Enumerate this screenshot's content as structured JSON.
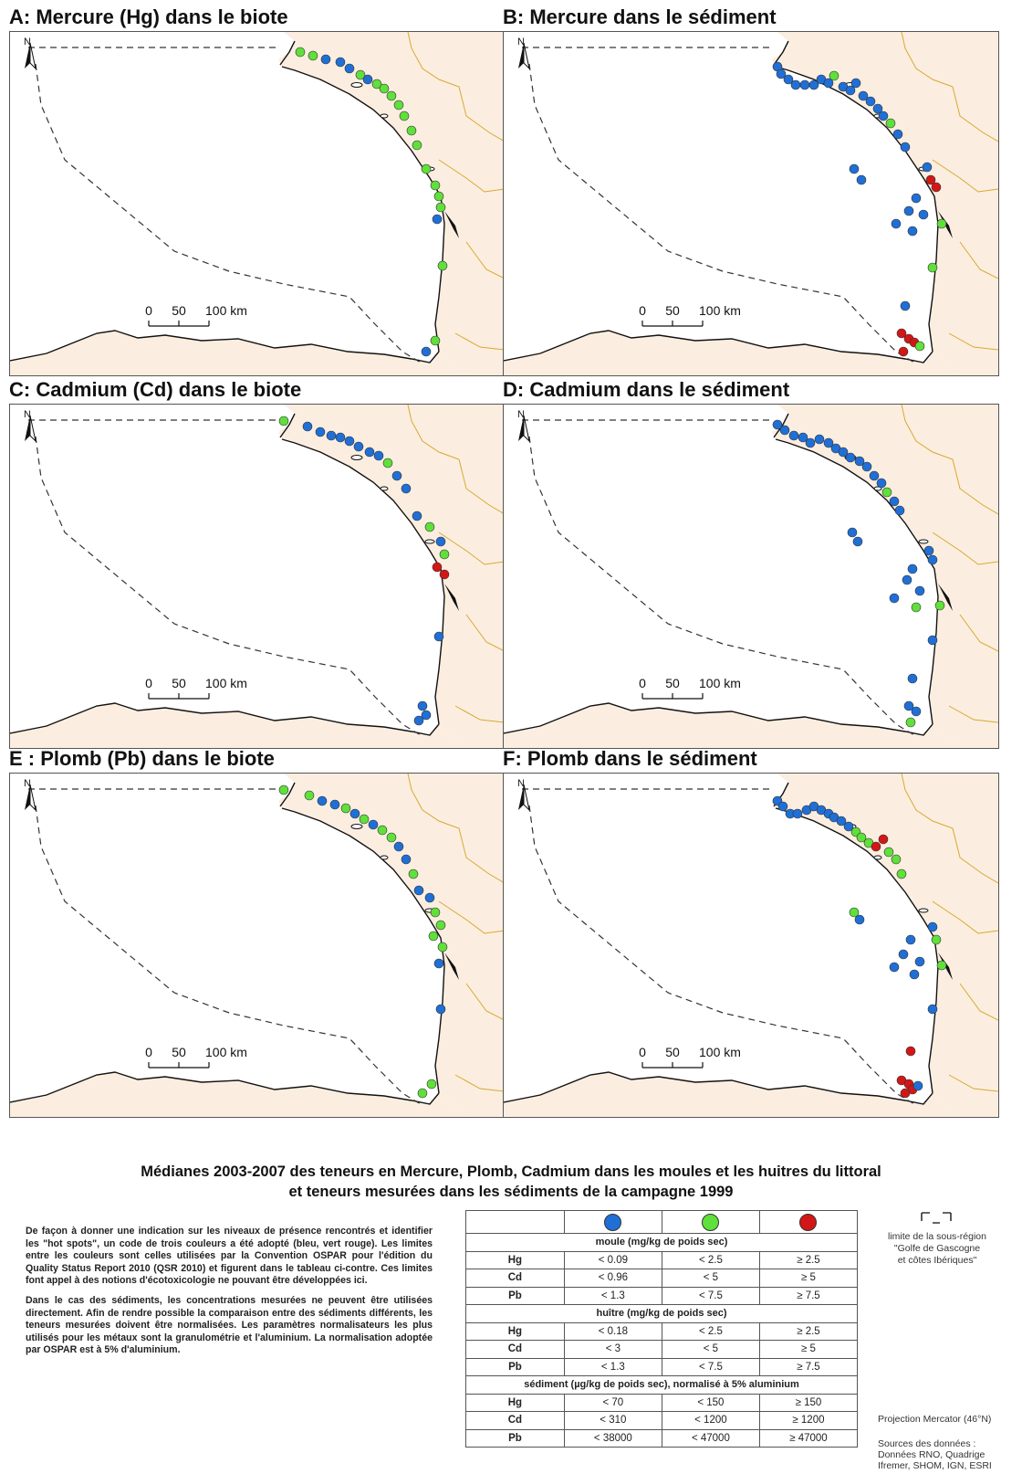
{
  "panels": [
    {
      "title": "A: Mercure (Hg) dans le biote"
    },
    {
      "title": "B: Mercure dans le sédiment"
    },
    {
      "title": "C: Cadmium (Cd) dans le biote"
    },
    {
      "title": "D: Cadmium dans le sédiment"
    },
    {
      "title": "E : Plomb (Pb) dans le biote"
    },
    {
      "title": "F: Plomb dans le sédiment"
    }
  ],
  "map_labels": {
    "north": "N",
    "scale_ticks": [
      "0",
      "50",
      "100 km"
    ]
  },
  "caption": {
    "line1": "Médianes 2003-2007 des teneurs  en Mercure, Plomb, Cadmium  dans les moules et les huitres du littoral",
    "line2": "et teneurs mesurées dans les sédiments de la campagne 1999"
  },
  "description": {
    "p1": "De façon à donner une indication sur les niveaux de présence rencontrés et identifier les \"hot spots\", un code de trois couleurs a été adopté (bleu, vert rouge). Les limites entre les couleurs sont celles utilisées par la Convention OSPAR pour l'édition du Quality Status Report 2010 (QSR 2010) et figurent dans le tableau ci-contre. Ces limites font appel à des notions d'écotoxicologie ne pouvant être développées ici.",
    "p2": "Dans le cas des sédiments, les concentrations mesurées ne peuvent être utilisées directement. Afin de rendre possible la comparaison entre des sédiments différents, les teneurs mesurées doivent être normalisées. Les paramètres normalisateurs les plus utilisés pour les métaux sont la granulométrie et l'aluminium. La normalisation adoptée par OSPAR est à 5% d'aluminium."
  },
  "legend": {
    "colors": {
      "blue": "#1f6fd6",
      "green": "#5fe03a",
      "red": "#d31616"
    },
    "sections": [
      {
        "header": "moule (mg/kg de poids sec)",
        "rows": [
          {
            "el": "Hg",
            "v": [
              "< 0.09",
              "< 2.5",
              "≥ 2.5"
            ]
          },
          {
            "el": "Cd",
            "v": [
              "< 0.96",
              "< 5",
              "≥ 5"
            ]
          },
          {
            "el": "Pb",
            "v": [
              "< 1.3",
              "< 7.5",
              "≥ 7.5"
            ]
          }
        ]
      },
      {
        "header": "huître (mg/kg de poids sec)",
        "rows": [
          {
            "el": "Hg",
            "v": [
              "< 0.18",
              "< 2.5",
              "≥ 2.5"
            ]
          },
          {
            "el": "Cd",
            "v": [
              "< 3",
              "< 5",
              "≥ 5"
            ]
          },
          {
            "el": "Pb",
            "v": [
              "< 1.3",
              "< 7.5",
              "≥ 7.5"
            ]
          }
        ]
      },
      {
        "header": "sédiment (µg/kg de poids sec), normalisé à 5% aluminium",
        "rows": [
          {
            "el": "Hg",
            "v": [
              "< 70",
              "< 150",
              "≥ 150"
            ]
          },
          {
            "el": "Cd",
            "v": [
              "< 310",
              "< 1200",
              "≥ 1200"
            ]
          },
          {
            "el": "Pb",
            "v": [
              "< 38000",
              "< 47000",
              "≥ 47000"
            ]
          }
        ]
      }
    ]
  },
  "side": {
    "limit_line1": "limite de la sous-région",
    "limit_line2": "\"Golfe de Gascogne",
    "limit_line3": "et côtes Ibériques\"",
    "projection": "Projection Mercator (46°N)",
    "sources1": "Sources des données :",
    "sources2": "Données RNO, Quadrige",
    "sources3": "Ifremer, SHOM, IGN, ESRI"
  }
}
